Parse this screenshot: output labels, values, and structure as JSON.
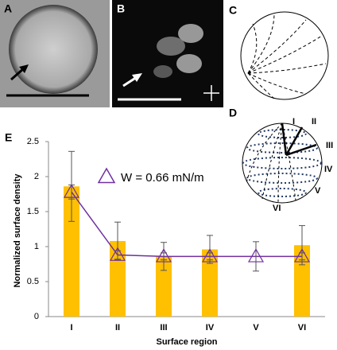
{
  "panels": {
    "labels": [
      "A",
      "B",
      "C",
      "D",
      "E"
    ]
  },
  "diagram_d": {
    "labels": [
      "I",
      "II",
      "III",
      "IV",
      "V",
      "VI"
    ]
  },
  "chart_data": {
    "type": "bar",
    "xlabel": "Surface region",
    "ylabel": "Normalized surface density",
    "categories": [
      "I",
      "II",
      "III",
      "IV",
      "V",
      "VI"
    ],
    "series": [
      {
        "name": null,
        "kind": "bar",
        "color": "#ffc000",
        "values": [
          1.86,
          1.08,
          0.86,
          0.96,
          null,
          1.02
        ],
        "errors": [
          0.5,
          0.27,
          0.2,
          0.2,
          null,
          0.28
        ]
      },
      {
        "name": "W = 0.66 mN/m",
        "kind": "line",
        "color": "#7030a0",
        "values": [
          1.78,
          0.88,
          0.86,
          0.86,
          0.86,
          0.86
        ],
        "errors": [
          0.1,
          0.06,
          0.05,
          0.05,
          0.21,
          0.05
        ]
      }
    ],
    "ylim": [
      0,
      2.5
    ],
    "yticks": [
      0,
      0.5,
      1,
      1.5,
      2,
      2.5
    ]
  }
}
